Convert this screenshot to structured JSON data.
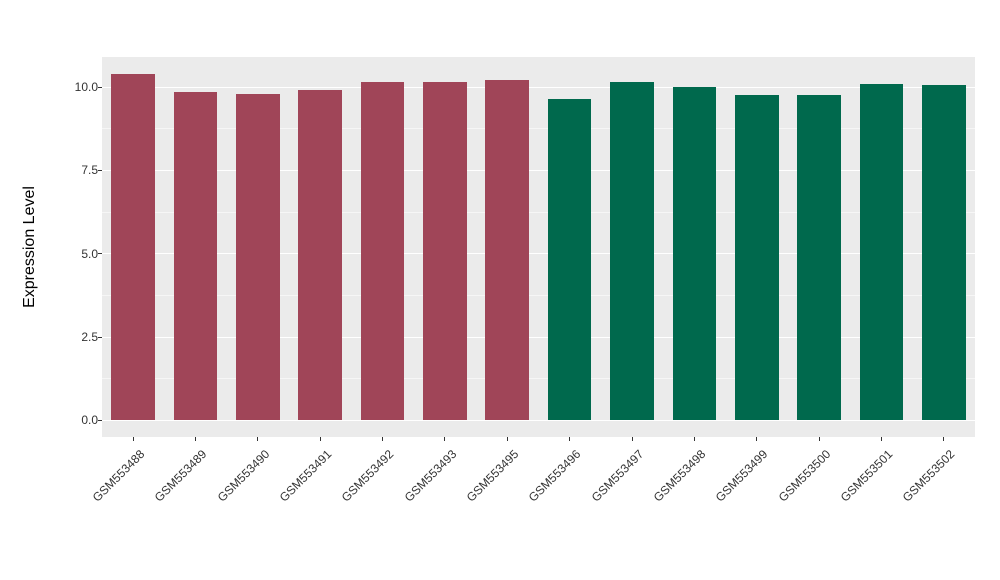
{
  "figure": {
    "background": "#FFFFFF"
  },
  "chart_data": {
    "type": "bar",
    "title": "",
    "xlabel": "",
    "ylabel": "Expression Level",
    "categories": [
      "GSM553488",
      "GSM553489",
      "GSM553490",
      "GSM553491",
      "GSM553492",
      "GSM553493",
      "GSM553495",
      "GSM553496",
      "GSM553497",
      "GSM553498",
      "GSM553499",
      "GSM553500",
      "GSM553501",
      "GSM553502"
    ],
    "values": [
      10.4,
      9.85,
      9.8,
      9.9,
      10.15,
      10.15,
      10.2,
      9.65,
      10.15,
      10.0,
      9.75,
      9.75,
      10.1,
      10.05
    ],
    "bar_colors": [
      "#A04558",
      "#A04558",
      "#A04558",
      "#A04558",
      "#A04558",
      "#A04558",
      "#A04558",
      "#00694D",
      "#00694D",
      "#00694D",
      "#00694D",
      "#00694D",
      "#00694D",
      "#00694D"
    ],
    "group_colors": {
      "group1": "#A04558",
      "group2": "#00694D"
    },
    "ylim": [
      -0.5,
      10.9
    ],
    "yticks": [
      0,
      2.5,
      5,
      7.5,
      10
    ],
    "ytick_labels": [
      "0.0",
      "2.5",
      "5.0",
      "7.5",
      "10.0"
    ],
    "minor_yticks": [
      1.25,
      3.75,
      6.25,
      8.75
    ],
    "grid": true,
    "legend": false,
    "panel_background": "#EBEBEB",
    "gridline_color": "#FFFFFF",
    "axis_text_color": "#333333",
    "bar_width_fraction": 0.7,
    "x_label_rotation_deg": 45
  }
}
